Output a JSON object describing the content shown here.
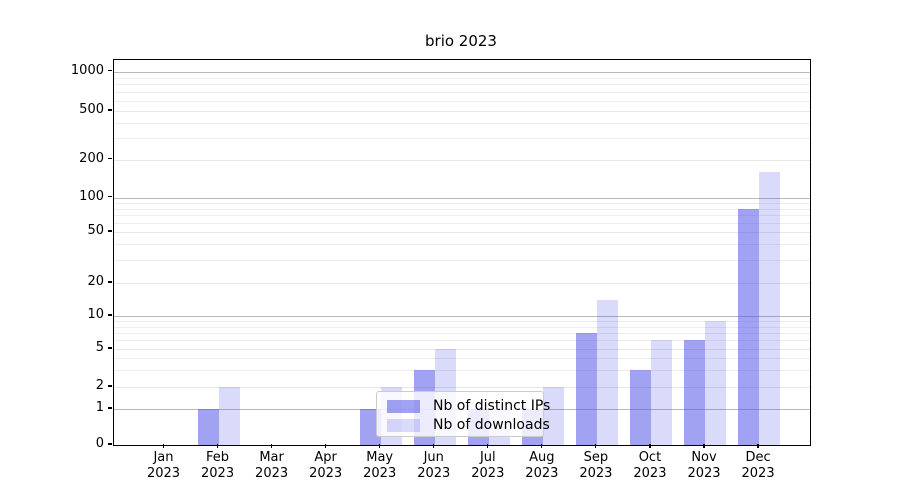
{
  "chart_data": {
    "type": "bar",
    "title": "brio 2023",
    "categories": [
      "Jan",
      "Feb",
      "Mar",
      "Apr",
      "May",
      "Jun",
      "Jul",
      "Aug",
      "Sep",
      "Oct",
      "Nov",
      "Dec"
    ],
    "category_year": "2023",
    "series": [
      {
        "name": "Nb of distinct IPs",
        "color": "rgba(70,70,230,0.5)",
        "values": [
          0,
          1,
          0,
          0,
          1,
          3,
          1,
          1,
          7,
          3,
          6,
          80
        ]
      },
      {
        "name": "Nb of downloads",
        "color": "rgba(70,70,230,0.2)",
        "values": [
          0,
          2,
          0,
          0,
          2,
          5,
          1,
          2,
          14,
          6,
          9,
          160
        ]
      }
    ],
    "xlabel": "",
    "ylabel": "",
    "yscale": "log (with 0 baseline)",
    "yticks": [
      0,
      1,
      2,
      5,
      10,
      20,
      50,
      100,
      200,
      500,
      1000
    ],
    "yminorticks": [
      3,
      4,
      6,
      7,
      8,
      9,
      30,
      40,
      60,
      70,
      80,
      90,
      300,
      400,
      600,
      700,
      800,
      900
    ],
    "ylim": [
      0,
      1000
    ],
    "grid": "on",
    "legend_position": "inside lower center"
  },
  "colors": {
    "bar_base": "#4646e6",
    "axis": "#000000",
    "grid_major": "#b9b9b9",
    "grid_minor": "#ededed",
    "background": "#ffffff"
  }
}
